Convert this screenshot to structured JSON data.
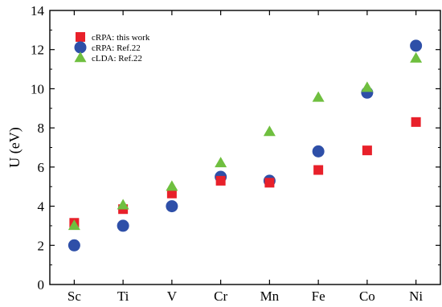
{
  "chart_data": {
    "type": "scatter",
    "categories": [
      "Sc",
      "Ti",
      "V",
      "Cr",
      "Mn",
      "Fe",
      "Co",
      "Ni"
    ],
    "ylabel": "U (eV)",
    "xlabel": "",
    "ylim": [
      0,
      14
    ],
    "yticks": [
      0,
      2,
      4,
      6,
      8,
      10,
      12,
      14
    ],
    "grid": false,
    "legend_position": "top-left",
    "series": [
      {
        "name": "cRPA: this work",
        "marker": "square",
        "color": "#e8202a",
        "values": [
          3.15,
          3.85,
          4.65,
          5.3,
          5.2,
          5.85,
          6.85,
          8.3
        ]
      },
      {
        "name": "cRPA: Ref.22",
        "marker": "circle",
        "color": "#2e4fa8",
        "values": [
          2.0,
          3.0,
          4.0,
          5.5,
          5.3,
          6.8,
          9.8,
          12.2
        ]
      },
      {
        "name": "cLDA: Ref.22",
        "marker": "triangle",
        "color": "#6fbf3f",
        "values": [
          3.0,
          4.05,
          5.0,
          6.2,
          7.8,
          9.55,
          10.05,
          11.55
        ]
      }
    ]
  }
}
